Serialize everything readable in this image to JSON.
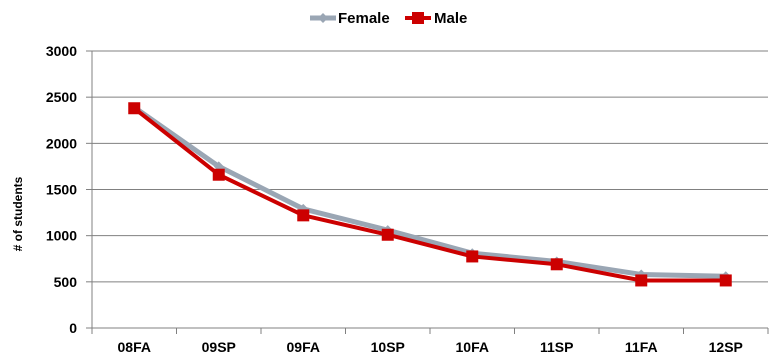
{
  "chart_data": {
    "type": "line",
    "title": "",
    "xlabel": "",
    "ylabel": "# of students",
    "categories": [
      "08FA",
      "09SP",
      "09FA",
      "10SP",
      "10FA",
      "11SP",
      "11FA",
      "12SP"
    ],
    "series": [
      {
        "name": "Female",
        "color": "#9aa6b4",
        "marker": "diamond",
        "values": [
          2390,
          1750,
          1290,
          1060,
          810,
          720,
          580,
          560
        ]
      },
      {
        "name": "Male",
        "color": "#cc0000",
        "marker": "square",
        "values": [
          2380,
          1660,
          1220,
          1010,
          775,
          690,
          515,
          515
        ]
      }
    ],
    "ylim": [
      0,
      3000
    ],
    "yticks": [
      0,
      500,
      1000,
      1500,
      2000,
      2500,
      3000
    ],
    "grid": true,
    "legend": "top-center"
  }
}
